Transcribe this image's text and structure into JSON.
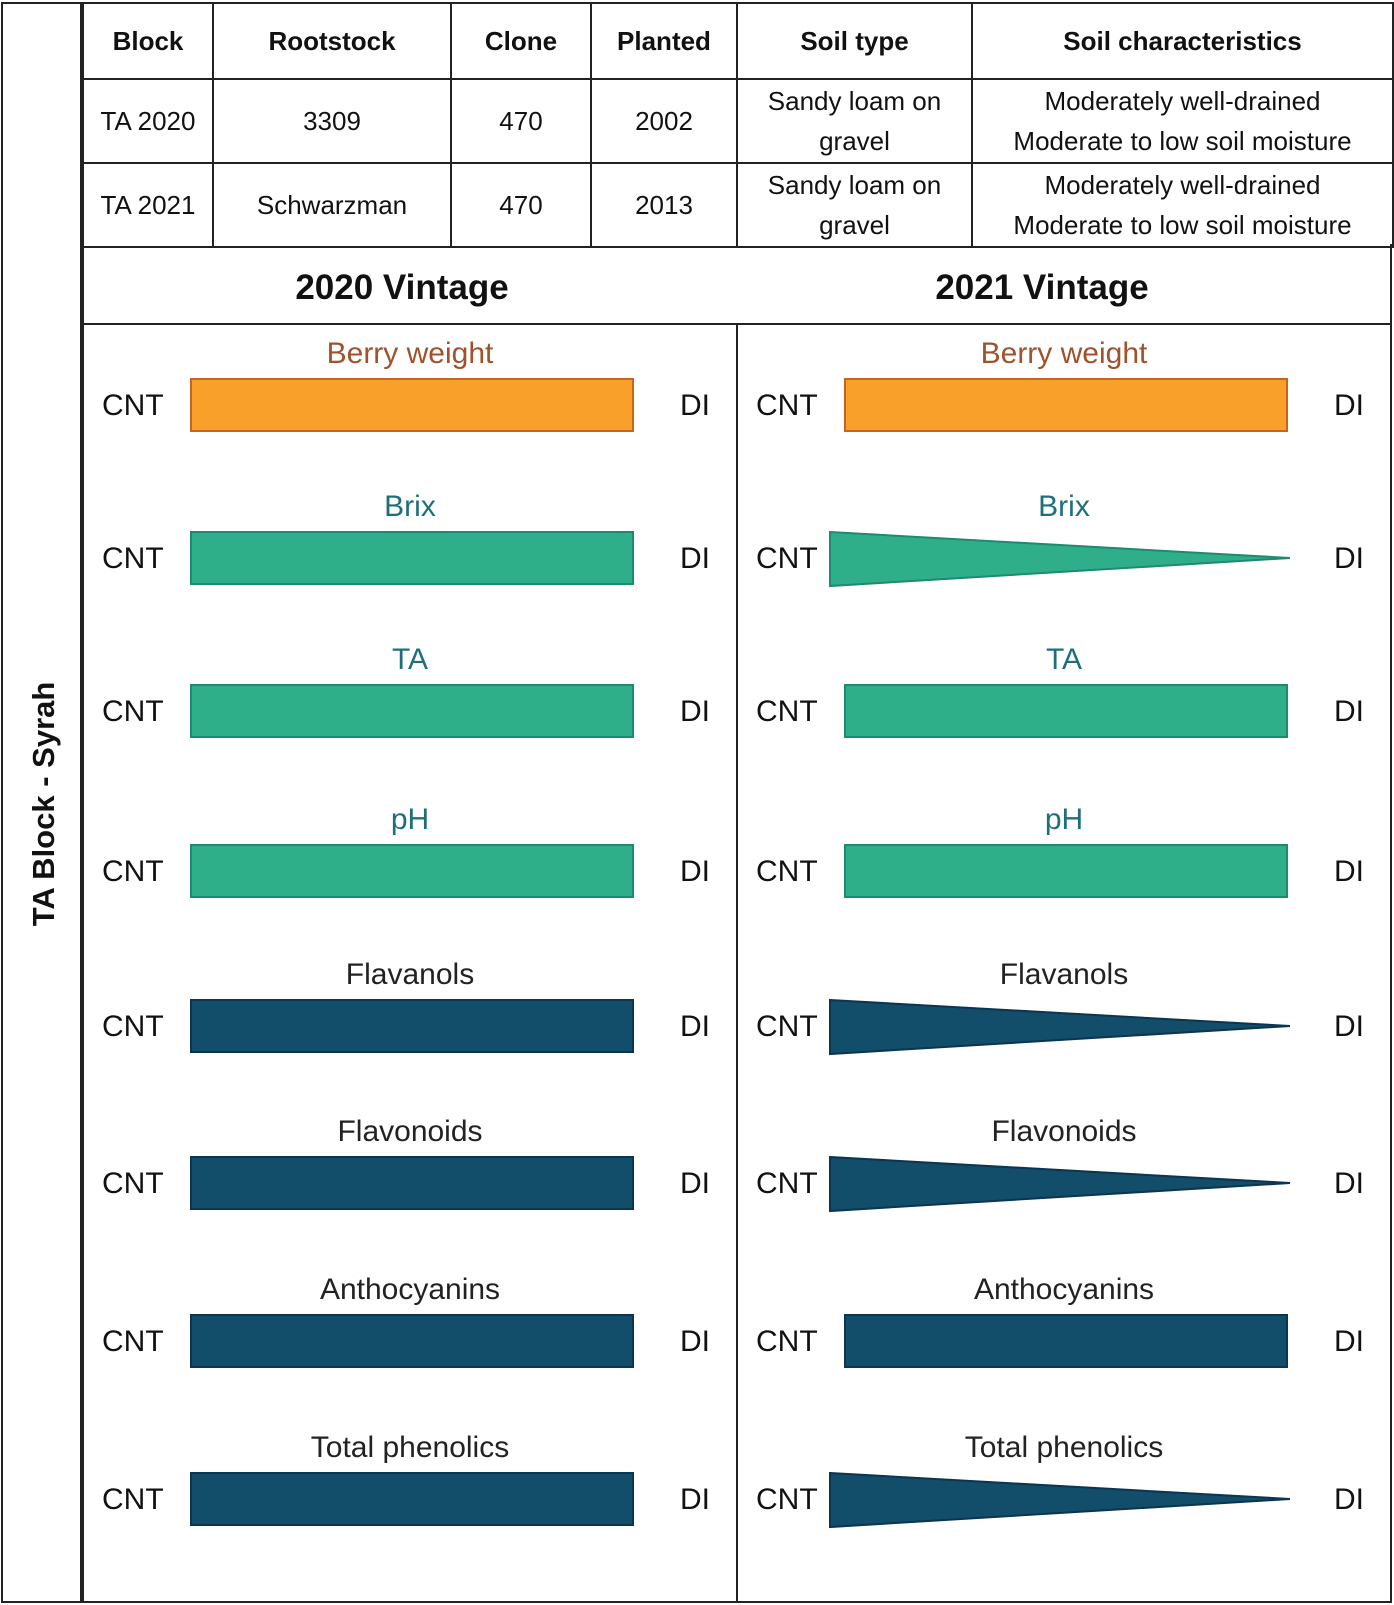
{
  "side_label": "TA Block - Syrah",
  "table": {
    "headers": [
      "Block",
      "Rootstock",
      "Clone",
      "Planted",
      "Soil type",
      "Soil characteristics"
    ],
    "rows": [
      {
        "block": "TA 2020",
        "rootstock": "3309",
        "clone": "470",
        "planted": "2002",
        "soil_type": [
          "Sandy loam on",
          "gravel"
        ],
        "soil_characteristics": [
          "Moderately well-drained",
          "Moderate to low soil moisture"
        ]
      },
      {
        "block": "TA 2021",
        "rootstock": "Schwarzman",
        "clone": "470",
        "planted": "2013",
        "soil_type": [
          "Sandy loam on",
          "gravel"
        ],
        "soil_characteristics": [
          "Moderately well-drained",
          "Moderate to low soil moisture"
        ]
      }
    ]
  },
  "colors": {
    "berry": "#F8A02A",
    "berry_stroke": "#C8641E",
    "berry_text": "#A0522D",
    "green": "#2EAF89",
    "green_stroke": "#1E8A70",
    "green_text": "#1F6F7A",
    "navy": "#124D6A",
    "navy_stroke": "#0B3550",
    "navy_text": "#222222"
  },
  "left_label": "CNT",
  "right_label": "DI",
  "vintages": [
    {
      "title": "2020 Vintage",
      "metrics": [
        {
          "name": "Berry weight",
          "shape": "rect",
          "color": "berry"
        },
        {
          "name": "Brix",
          "shape": "rect",
          "color": "green"
        },
        {
          "name": "TA",
          "shape": "rect",
          "color": "green"
        },
        {
          "name": "pH",
          "shape": "rect",
          "color": "green"
        },
        {
          "name": "Flavanols",
          "shape": "rect",
          "color": "navy"
        },
        {
          "name": "Flavonoids",
          "shape": "rect",
          "color": "navy"
        },
        {
          "name": "Anthocyanins",
          "shape": "rect",
          "color": "navy"
        },
        {
          "name": "Total phenolics",
          "shape": "rect",
          "color": "navy"
        }
      ]
    },
    {
      "title": "2021 Vintage",
      "metrics": [
        {
          "name": "Berry weight",
          "shape": "rect",
          "color": "berry"
        },
        {
          "name": "Brix",
          "shape": "wedge",
          "color": "green"
        },
        {
          "name": "TA",
          "shape": "rect",
          "color": "green"
        },
        {
          "name": "pH",
          "shape": "rect",
          "color": "green"
        },
        {
          "name": "Flavanols",
          "shape": "wedge",
          "color": "navy"
        },
        {
          "name": "Flavonoids",
          "shape": "wedge",
          "color": "navy"
        },
        {
          "name": "Anthocyanins",
          "shape": "rect",
          "color": "navy"
        },
        {
          "name": "Total phenolics",
          "shape": "wedge",
          "color": "navy"
        }
      ]
    }
  ]
}
